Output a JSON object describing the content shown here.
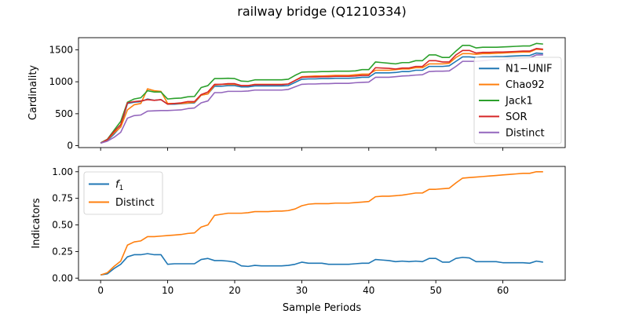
{
  "chart_data": {
    "title": "railway bridge (Q1210334)",
    "xlabel": "Sample Periods",
    "x": [
      0,
      1,
      2,
      3,
      4,
      5,
      6,
      7,
      8,
      9,
      10,
      11,
      12,
      13,
      14,
      15,
      16,
      17,
      18,
      19,
      20,
      21,
      22,
      23,
      24,
      25,
      26,
      27,
      28,
      29,
      30,
      31,
      32,
      33,
      34,
      35,
      36,
      37,
      38,
      39,
      40,
      41,
      42,
      43,
      44,
      45,
      46,
      47,
      48,
      49,
      50,
      51,
      52,
      53,
      54,
      55,
      56,
      57,
      58,
      59,
      60,
      61,
      62,
      63,
      64,
      65,
      66
    ],
    "xticks": [
      0,
      10,
      20,
      30,
      40,
      50,
      60
    ],
    "xticklabels": [
      "0",
      "10",
      "20",
      "30",
      "40",
      "50",
      "60"
    ],
    "xlim": [
      -3.3,
      69.3
    ],
    "panels": [
      {
        "type": "line",
        "ylabel": "Cardinality",
        "ylim": [
          -30,
          1690
        ],
        "yticks": [
          0,
          500,
          1000,
          1500
        ],
        "yticklabels": [
          "0",
          "500",
          "1000",
          "1500"
        ],
        "legend": "lower-right",
        "series": [
          {
            "name": "N1−UNIF",
            "color": "#1f77b4",
            "values": [
              40,
              80,
              180,
              300,
              660,
              680,
              690,
              730,
              710,
              720,
              650,
              650,
              655,
              665,
              670,
              790,
              810,
              930,
              930,
              940,
              940,
              920,
              920,
              935,
              935,
              935,
              935,
              935,
              940,
              990,
              1040,
              1045,
              1045,
              1050,
              1050,
              1055,
              1055,
              1055,
              1060,
              1070,
              1070,
              1140,
              1140,
              1140,
              1145,
              1160,
              1160,
              1180,
              1180,
              1240,
              1240,
              1240,
              1250,
              1320,
              1390,
              1390,
              1380,
              1390,
              1390,
              1395,
              1395,
              1400,
              1405,
              1410,
              1410,
              1450,
              1440
            ]
          },
          {
            "name": "Chao92",
            "color": "#ff7f0e",
            "values": [
              40,
              90,
              200,
              290,
              560,
              640,
              660,
              890,
              860,
              850,
              660,
              660,
              660,
              670,
              680,
              790,
              810,
              950,
              960,
              960,
              960,
              940,
              940,
              960,
              960,
              960,
              960,
              960,
              965,
              1020,
              1080,
              1085,
              1090,
              1090,
              1095,
              1100,
              1100,
              1100,
              1110,
              1120,
              1120,
              1180,
              1180,
              1180,
              1190,
              1200,
              1200,
              1220,
              1220,
              1280,
              1280,
              1280,
              1290,
              1380,
              1440,
              1440,
              1430,
              1440,
              1440,
              1445,
              1450,
              1455,
              1460,
              1465,
              1465,
              1510,
              1500
            ]
          },
          {
            "name": "Jack1",
            "color": "#2ca02c",
            "values": [
              45,
              100,
              240,
              380,
              680,
              730,
              750,
              860,
              840,
              840,
              730,
              740,
              745,
              765,
              770,
              910,
              940,
              1050,
              1050,
              1055,
              1050,
              1010,
              1005,
              1030,
              1030,
              1030,
              1030,
              1030,
              1040,
              1100,
              1150,
              1155,
              1155,
              1160,
              1160,
              1165,
              1165,
              1165,
              1170,
              1190,
              1190,
              1310,
              1300,
              1290,
              1280,
              1300,
              1300,
              1330,
              1330,
              1420,
              1420,
              1380,
              1380,
              1480,
              1570,
              1570,
              1530,
              1540,
              1540,
              1540,
              1545,
              1550,
              1555,
              1560,
              1560,
              1600,
              1590
            ]
          },
          {
            "name": "SOR",
            "color": "#d62728",
            "values": [
              40,
              95,
              220,
              330,
              670,
              690,
              700,
              720,
              710,
              720,
              650,
              660,
              670,
              690,
              690,
              800,
              840,
              960,
              960,
              970,
              970,
              940,
              940,
              955,
              955,
              955,
              955,
              955,
              965,
              1020,
              1070,
              1075,
              1075,
              1080,
              1080,
              1085,
              1085,
              1085,
              1090,
              1100,
              1100,
              1220,
              1215,
              1210,
              1200,
              1215,
              1215,
              1240,
              1240,
              1330,
              1330,
              1310,
              1310,
              1420,
              1490,
              1490,
              1450,
              1460,
              1460,
              1465,
              1465,
              1470,
              1475,
              1480,
              1480,
              1520,
              1510
            ]
          },
          {
            "name": "Distinct",
            "color": "#9467bd",
            "values": [
              40,
              70,
              130,
              210,
              430,
              470,
              480,
              540,
              545,
              550,
              550,
              555,
              560,
              580,
              590,
              670,
              700,
              830,
              830,
              850,
              850,
              850,
              855,
              870,
              870,
              870,
              870,
              870,
              880,
              920,
              960,
              965,
              965,
              970,
              970,
              975,
              975,
              975,
              985,
              990,
              995,
              1070,
              1070,
              1070,
              1080,
              1090,
              1095,
              1105,
              1110,
              1160,
              1165,
              1165,
              1170,
              1240,
              1320,
              1320,
              1320,
              1330,
              1340,
              1345,
              1350,
              1360,
              1365,
              1370,
              1375,
              1420,
              1420
            ]
          }
        ]
      },
      {
        "type": "line",
        "ylabel": "Indicators",
        "ylim": [
          -0.02,
          1.05
        ],
        "yticks": [
          0,
          0.25,
          0.5,
          0.75,
          1
        ],
        "yticklabels": [
          "0.00",
          "0.25",
          "0.50",
          "0.75",
          "1.00"
        ],
        "legend": "upper-left",
        "series": [
          {
            "name": "f1",
            "label_main": "f",
            "label_sub": "1",
            "color": "#1f77b4",
            "values": [
              0.03,
              0.04,
              0.09,
              0.13,
              0.2,
              0.22,
              0.22,
              0.23,
              0.22,
              0.22,
              0.13,
              0.135,
              0.135,
              0.135,
              0.135,
              0.175,
              0.185,
              0.165,
              0.165,
              0.16,
              0.15,
              0.115,
              0.11,
              0.12,
              0.115,
              0.115,
              0.115,
              0.115,
              0.12,
              0.13,
              0.15,
              0.14,
              0.14,
              0.14,
              0.13,
              0.13,
              0.13,
              0.13,
              0.135,
              0.14,
              0.14,
              0.175,
              0.17,
              0.165,
              0.155,
              0.16,
              0.155,
              0.16,
              0.155,
              0.185,
              0.185,
              0.15,
              0.15,
              0.185,
              0.195,
              0.19,
              0.155,
              0.155,
              0.155,
              0.155,
              0.145,
              0.145,
              0.145,
              0.145,
              0.14,
              0.16,
              0.15
            ]
          },
          {
            "name": "Distinct",
            "color": "#ff7f0e",
            "values": [
              0.03,
              0.05,
              0.11,
              0.16,
              0.31,
              0.34,
              0.35,
              0.39,
              0.39,
              0.395,
              0.4,
              0.405,
              0.41,
              0.42,
              0.425,
              0.48,
              0.5,
              0.59,
              0.6,
              0.61,
              0.61,
              0.61,
              0.615,
              0.625,
              0.625,
              0.625,
              0.63,
              0.63,
              0.635,
              0.65,
              0.68,
              0.695,
              0.7,
              0.7,
              0.7,
              0.705,
              0.705,
              0.705,
              0.71,
              0.715,
              0.72,
              0.765,
              0.77,
              0.77,
              0.775,
              0.78,
              0.79,
              0.8,
              0.8,
              0.835,
              0.835,
              0.84,
              0.845,
              0.895,
              0.94,
              0.945,
              0.95,
              0.955,
              0.96,
              0.965,
              0.97,
              0.975,
              0.98,
              0.985,
              0.985,
              1.0,
              1.0
            ]
          }
        ]
      }
    ]
  }
}
